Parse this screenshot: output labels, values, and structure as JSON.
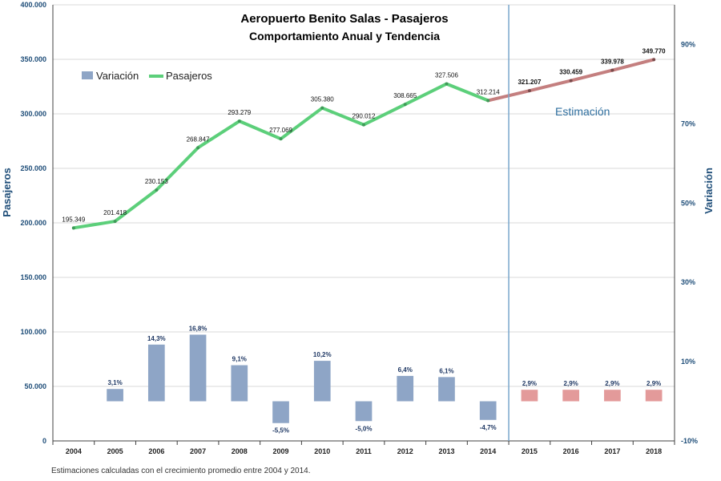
{
  "chart_data": {
    "type": "bar+line",
    "title": "Aeropuerto  Benito Salas - Pasajeros",
    "subtitle": "Comportamiento Anual y Tendencia",
    "ylabel_left": "Pasajeros",
    "ylabel_right": "Variación",
    "left_axis": {
      "min": 0,
      "max": 400000,
      "step": 50000,
      "tick_labels": [
        "0",
        "50.000",
        "100.000",
        "150.000",
        "200.000",
        "250.000",
        "300.000",
        "350.000",
        "400.000"
      ]
    },
    "right_axis": {
      "min": -10,
      "max": 100,
      "step": 20,
      "tick_labels": [
        "-10%",
        "10%",
        "30%",
        "50%",
        "70%",
        "90%"
      ]
    },
    "categories": [
      "2004",
      "2005",
      "2006",
      "2007",
      "2008",
      "2009",
      "2010",
      "2011",
      "2012",
      "2013",
      "2014",
      "2015",
      "2016",
      "2017",
      "2018"
    ],
    "legend": [
      {
        "key": "bars",
        "label": "Variación"
      },
      {
        "key": "line",
        "label": "Pasajeros"
      }
    ],
    "series_pasajeros": {
      "name": "Pasajeros",
      "values": [
        195349,
        201418,
        230153,
        268847,
        293279,
        277069,
        305380,
        290012,
        308665,
        327506,
        312214,
        321207,
        330459,
        339978,
        349770
      ],
      "labels": [
        "195.349",
        "201.418",
        "230.153",
        "268.847",
        "293.279",
        "277.069",
        "305.380",
        "290.012",
        "308.665",
        "327.506",
        "312.214",
        "321.207",
        "330.459",
        "339.978",
        "349.770"
      ]
    },
    "series_variacion": {
      "name": "Variación",
      "values": [
        null,
        3.1,
        14.3,
        16.8,
        9.1,
        -5.5,
        10.2,
        -5.0,
        6.4,
        6.1,
        -4.7,
        2.9,
        2.9,
        2.9,
        2.9
      ],
      "labels": [
        "",
        "3,1%",
        "14,3%",
        "16,8%",
        "9,1%",
        "-5,5%",
        "10,2%",
        "-5,0%",
        "6,4%",
        "6,1%",
        "-4,7%",
        "2,9%",
        "2,9%",
        "2,9%",
        "2,9%"
      ]
    },
    "estimate_start_index": 10,
    "estimate_label": "Estimación",
    "colors": {
      "line_actual": "#5ccf7a",
      "line_estimate": "#c47f7f",
      "bar_actual": "#8ea5c6",
      "bar_estimate": "#e39a9a",
      "axis_text": "#1f4e79",
      "divider": "#7aa7cc",
      "grid": "#d9d9d9"
    }
  },
  "footnote": "Estimaciones calculadas con el crecimiento promedio entre 2004 y 2014."
}
